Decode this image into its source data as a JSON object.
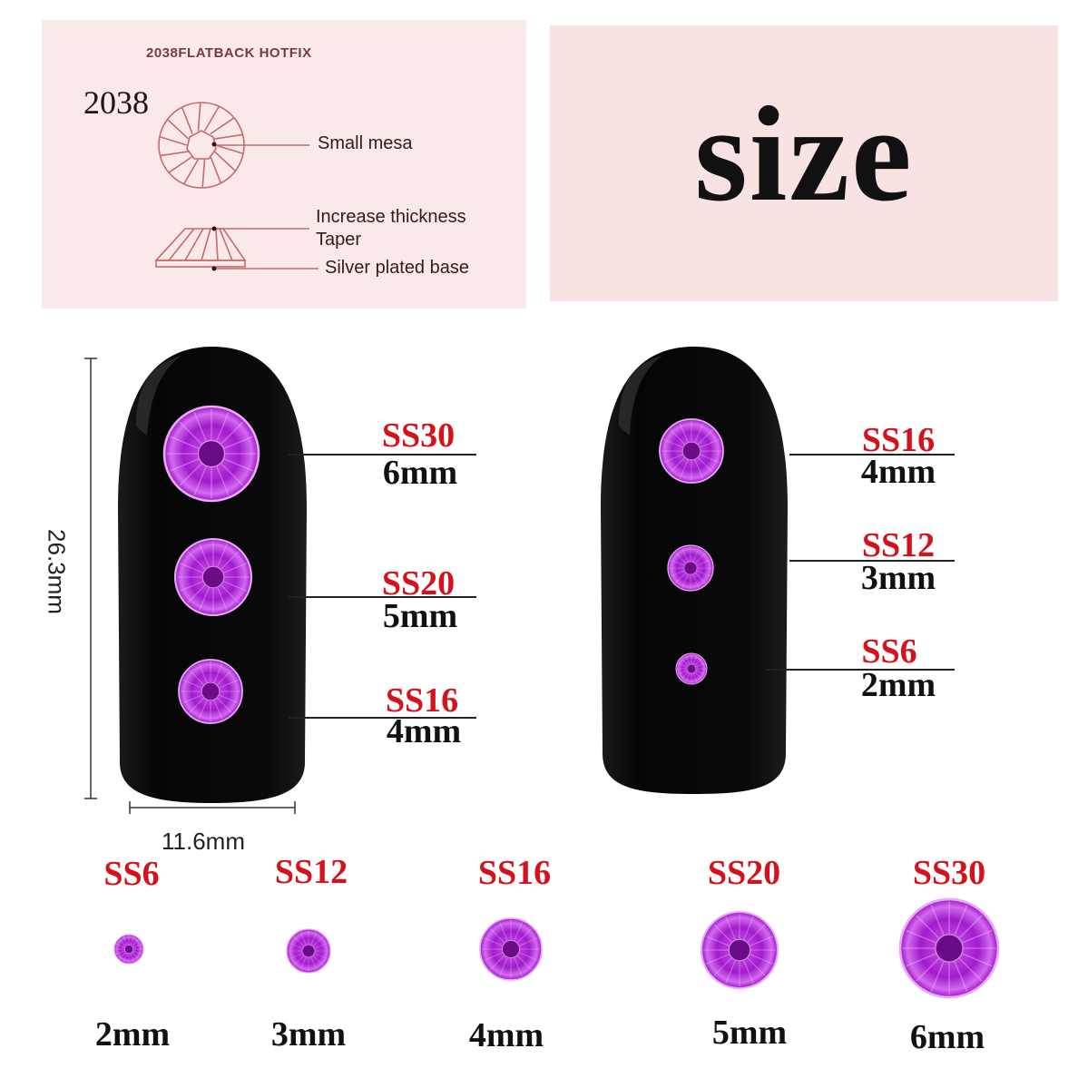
{
  "diagram": {
    "header": "2038FLATBACK HOTFIX",
    "model": "2038",
    "callouts": {
      "mesa": "Small mesa",
      "thickness": "Increase thickness",
      "taper": "Taper",
      "base": "Silver plated base"
    },
    "colors": {
      "panel": "#f9e9e9",
      "sketch": "#c86a6a",
      "gem": "#b020d8",
      "label_red": "#d3121b",
      "nail": "#0d0d0d"
    }
  },
  "title": "size",
  "nail_dimensions": {
    "height": "26.3mm",
    "width": "11.6mm"
  },
  "left_nail": [
    {
      "code": "SS30",
      "mm": "6mm"
    },
    {
      "code": "SS20",
      "mm": "5mm"
    },
    {
      "code": "SS16",
      "mm": "4mm"
    }
  ],
  "right_nail": [
    {
      "code": "SS16",
      "mm": "4mm"
    },
    {
      "code": "SS12",
      "mm": "3mm"
    },
    {
      "code": "SS6",
      "mm": "2mm"
    }
  ],
  "bottom_row": [
    {
      "code": "SS6",
      "mm": "2mm"
    },
    {
      "code": "SS12",
      "mm": "3mm"
    },
    {
      "code": "SS16",
      "mm": "4mm"
    },
    {
      "code": "SS20",
      "mm": "5mm"
    },
    {
      "code": "SS30",
      "mm": "6mm"
    }
  ]
}
